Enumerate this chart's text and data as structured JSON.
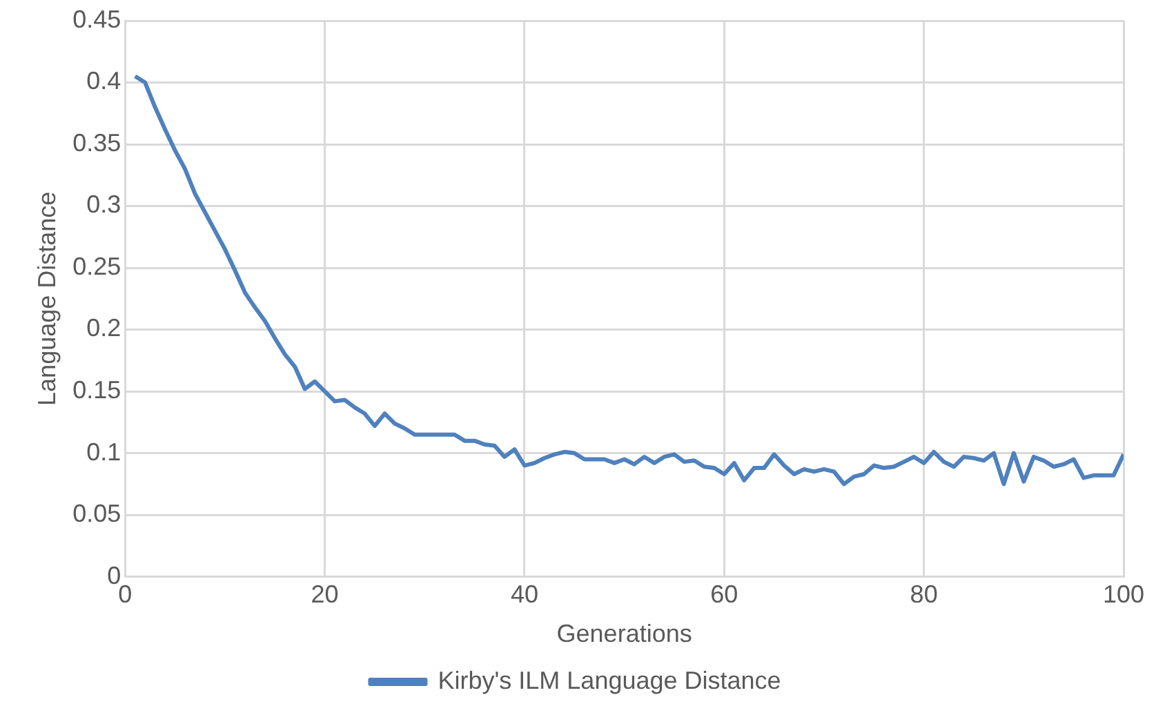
{
  "chart_data": {
    "type": "line",
    "xlabel": "Generations",
    "ylabel": "Language Distance",
    "x": [
      1,
      2,
      3,
      4,
      5,
      6,
      7,
      8,
      9,
      10,
      11,
      12,
      13,
      14,
      15,
      16,
      17,
      18,
      19,
      20,
      21,
      22,
      23,
      24,
      25,
      26,
      27,
      28,
      29,
      30,
      31,
      32,
      33,
      34,
      35,
      36,
      37,
      38,
      39,
      40,
      41,
      42,
      43,
      44,
      45,
      46,
      47,
      48,
      49,
      50,
      51,
      52,
      53,
      54,
      55,
      56,
      57,
      58,
      59,
      60,
      61,
      62,
      63,
      64,
      65,
      66,
      67,
      68,
      69,
      70,
      71,
      72,
      73,
      74,
      75,
      76,
      77,
      78,
      79,
      80,
      81,
      82,
      83,
      84,
      85,
      86,
      87,
      88,
      89,
      90,
      91,
      92,
      93,
      94,
      95,
      96,
      97,
      98,
      99,
      100
    ],
    "series": [
      {
        "name": "Kirby's ILM Language Distance",
        "color": "#4f81bd",
        "values": [
          0.405,
          0.4,
          0.38,
          0.362,
          0.345,
          0.33,
          0.31,
          0.295,
          0.28,
          0.265,
          0.248,
          0.23,
          0.218,
          0.207,
          0.193,
          0.18,
          0.17,
          0.152,
          0.158,
          0.15,
          0.142,
          0.143,
          0.137,
          0.132,
          0.122,
          0.132,
          0.124,
          0.12,
          0.115,
          0.115,
          0.115,
          0.115,
          0.115,
          0.11,
          0.11,
          0.107,
          0.106,
          0.097,
          0.103,
          0.09,
          0.092,
          0.096,
          0.099,
          0.101,
          0.1,
          0.095,
          0.095,
          0.095,
          0.092,
          0.095,
          0.091,
          0.097,
          0.092,
          0.097,
          0.099,
          0.093,
          0.094,
          0.089,
          0.088,
          0.083,
          0.092,
          0.078,
          0.088,
          0.088,
          0.099,
          0.09,
          0.083,
          0.087,
          0.085,
          0.087,
          0.085,
          0.075,
          0.081,
          0.083,
          0.09,
          0.088,
          0.089,
          0.093,
          0.097,
          0.092,
          0.101,
          0.093,
          0.089,
          0.097,
          0.096,
          0.094,
          0.1,
          0.075,
          0.1,
          0.077,
          0.097,
          0.094,
          0.089,
          0.091,
          0.095,
          0.08,
          0.082,
          0.082,
          0.082,
          0.099
        ]
      }
    ],
    "xlim": [
      0,
      100
    ],
    "xticks": [
      0,
      20,
      40,
      60,
      80,
      100
    ],
    "ylim": [
      0,
      0.45
    ],
    "yticks": [
      0,
      0.05,
      0.1,
      0.15,
      0.2,
      0.25,
      0.3,
      0.35,
      0.4,
      0.45
    ],
    "grid": true,
    "legend": "bottom",
    "marker": "none",
    "line_style": "solid"
  }
}
